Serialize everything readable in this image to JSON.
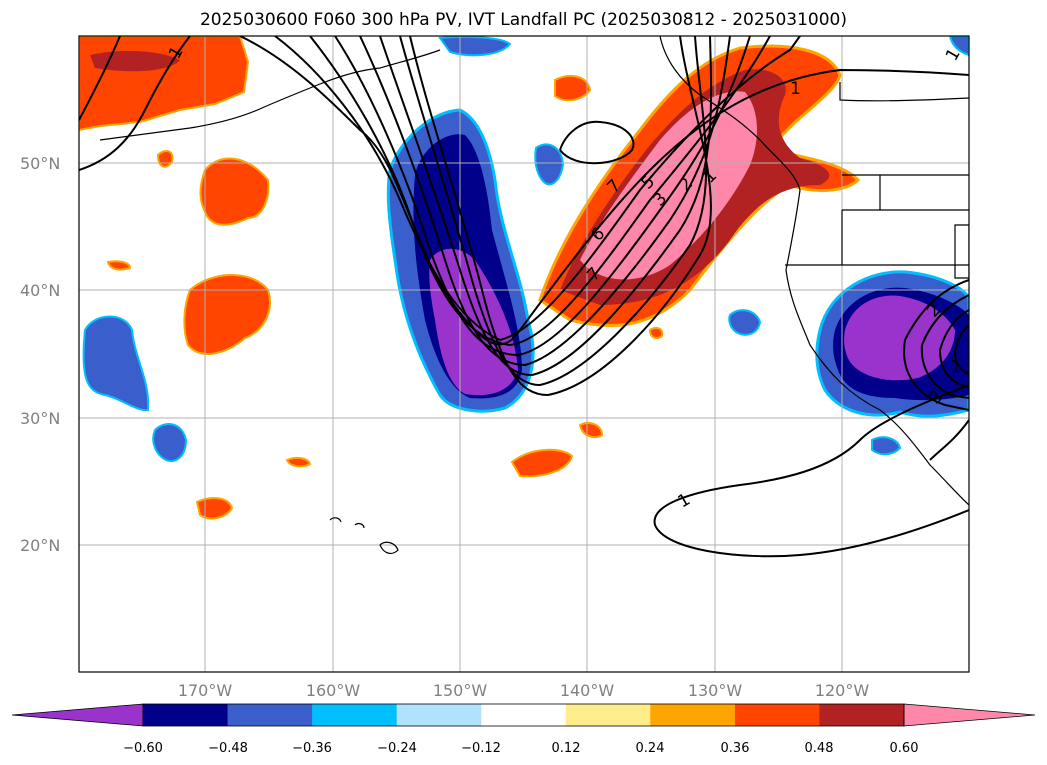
{
  "title": "2025030600 F060 300 hPa PV, IVT Landfall PC (2025030812 - 2025031000)",
  "map": {
    "lon_range": [
      -180,
      -110
    ],
    "lat_range": [
      10,
      60
    ],
    "lat_ticks": [
      {
        "value": 50,
        "label": "50°N"
      },
      {
        "value": 40,
        "label": "40°N"
      },
      {
        "value": 30,
        "label": "30°N"
      },
      {
        "value": 20,
        "label": "20°N"
      }
    ],
    "lon_ticks": [
      {
        "value": -170,
        "label": "170°W"
      },
      {
        "value": -160,
        "label": "160°W"
      },
      {
        "value": -150,
        "label": "150°W"
      },
      {
        "value": -140,
        "label": "140°W"
      },
      {
        "value": -130,
        "label": "130°W"
      },
      {
        "value": -120,
        "label": "120°W"
      }
    ],
    "contour_labels": [
      "1",
      "1",
      "1",
      "1",
      "7",
      "5",
      "3",
      "2",
      "1",
      "6",
      "7",
      "2",
      "3",
      "1"
    ]
  },
  "colorbar": {
    "colors": [
      "#9933cc",
      "#00008b",
      "#3a5fcd",
      "#00bfff",
      "#b0e2ff",
      "#ffffff",
      "#ffec8b",
      "#ffa500",
      "#ff4500",
      "#b22222",
      "#ff88aa"
    ],
    "ticks": [
      "−0.60",
      "−0.48",
      "−0.36",
      "−0.24",
      "−0.12",
      "0.12",
      "0.24",
      "0.36",
      "0.48",
      "0.60"
    ]
  }
}
